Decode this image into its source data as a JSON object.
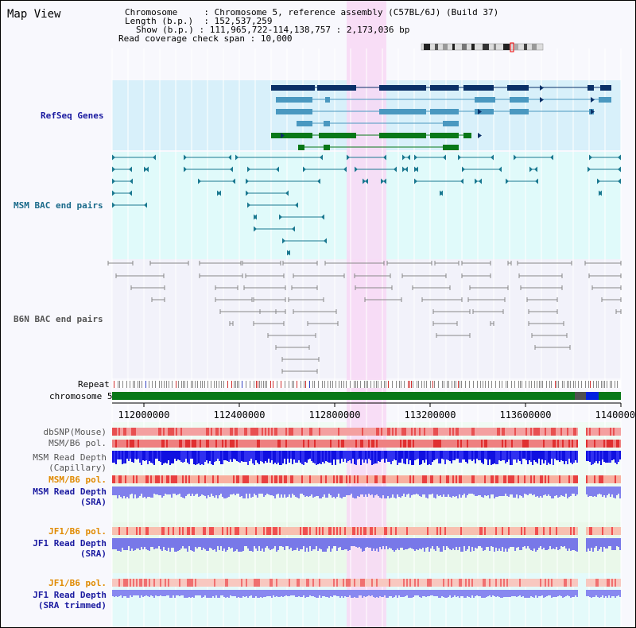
{
  "header": {
    "title": "Map View",
    "chromosome_label": "Chromosome",
    "chromosome_value": ": Chromosome 5, reference assembly (C57BL/6J) (Build 37)",
    "length_label": "Length (b.p.)",
    "length_value": ": 152,537,259",
    "show_label": "Show (b.p.)",
    "show_value": ": 111,965,722-114,138,757 : 2,173,036 bp",
    "coverage_label": "Read coverage check span",
    "coverage_value": ": 10,000"
  },
  "tracks": {
    "refseq": "RefSeq Genes",
    "msm_bac": "MSM BAC end pairs",
    "b6n_bac": "B6N BAC end pairs",
    "repeat": "Repeat",
    "chromosome": "chromosome 5",
    "dbsnp": "dbSNP(Mouse)",
    "msm_pol": "MSM/B6 pol.",
    "msm_depth_cap_1": "MSM Read Depth",
    "msm_depth_cap_2": "(Capillary)",
    "msm_pol_sra": "MSM/B6 pol.",
    "msm_depth_sra_1": "MSM Read Depth",
    "msm_depth_sra_2": "(SRA)",
    "jf1_pol": "JF1/B6 pol.",
    "jf1_depth_1": "JF1 Read Depth",
    "jf1_depth_2": "(SRA)",
    "jf1_pol_trim": "JF1/B6 pol.",
    "jf1_trim_1": "JF1 Read Depth",
    "jf1_trim_2": "(SRA trimmed)"
  },
  "axis": {
    "ticks": [
      "112000000",
      "112400000",
      "112800000",
      "113200000",
      "113600000",
      "114000000"
    ]
  },
  "colors": {
    "refseq_bg": "#d8f0fa",
    "msm_bg": "#e0fafa",
    "highlight": "#f8d8f4",
    "gene_dark": "#0a3068",
    "gene_light": "#4a98c0",
    "gene_green": "#087818",
    "msm_bac": "#1a7890",
    "b6n_bac": "#888888",
    "label_blue": "#1a1aa0",
    "label_orange": "#e08a00",
    "label_gray": "#555555",
    "label_teal": "#1a6a8a"
  }
}
